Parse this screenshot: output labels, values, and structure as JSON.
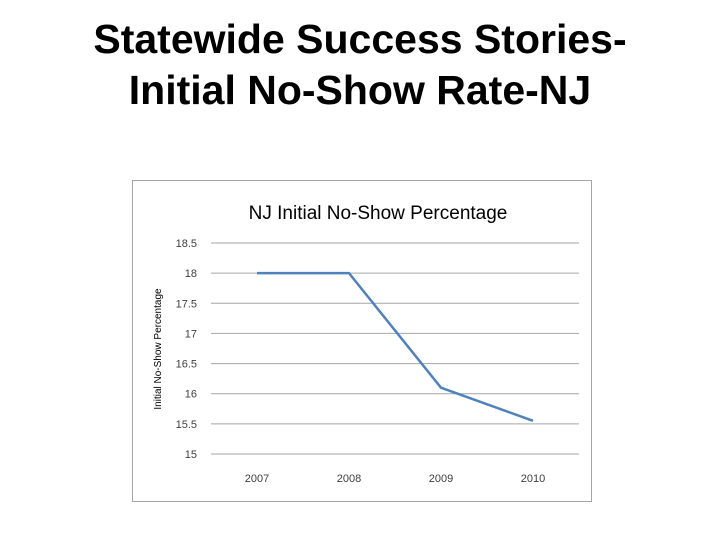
{
  "slide": {
    "title_line1": "Statewide Success Stories-",
    "title_line2": "Initial No-Show Rate-NJ"
  },
  "chart_data": {
    "type": "line",
    "title": "NJ Initial No-Show Percentage",
    "xlabel": "",
    "ylabel": "Initial No-Show Percentage",
    "categories": [
      "2007",
      "2008",
      "2009",
      "2010"
    ],
    "series": [
      {
        "values": [
          18.0,
          18.0,
          16.1,
          15.55
        ],
        "color": "#4f81bd"
      }
    ],
    "ylim": [
      15,
      18.5
    ],
    "yticks": [
      15,
      15.5,
      16,
      16.5,
      17,
      17.5,
      18,
      18.5
    ],
    "grid": true,
    "gridColor": "#a6a6a6",
    "legend": "none"
  }
}
